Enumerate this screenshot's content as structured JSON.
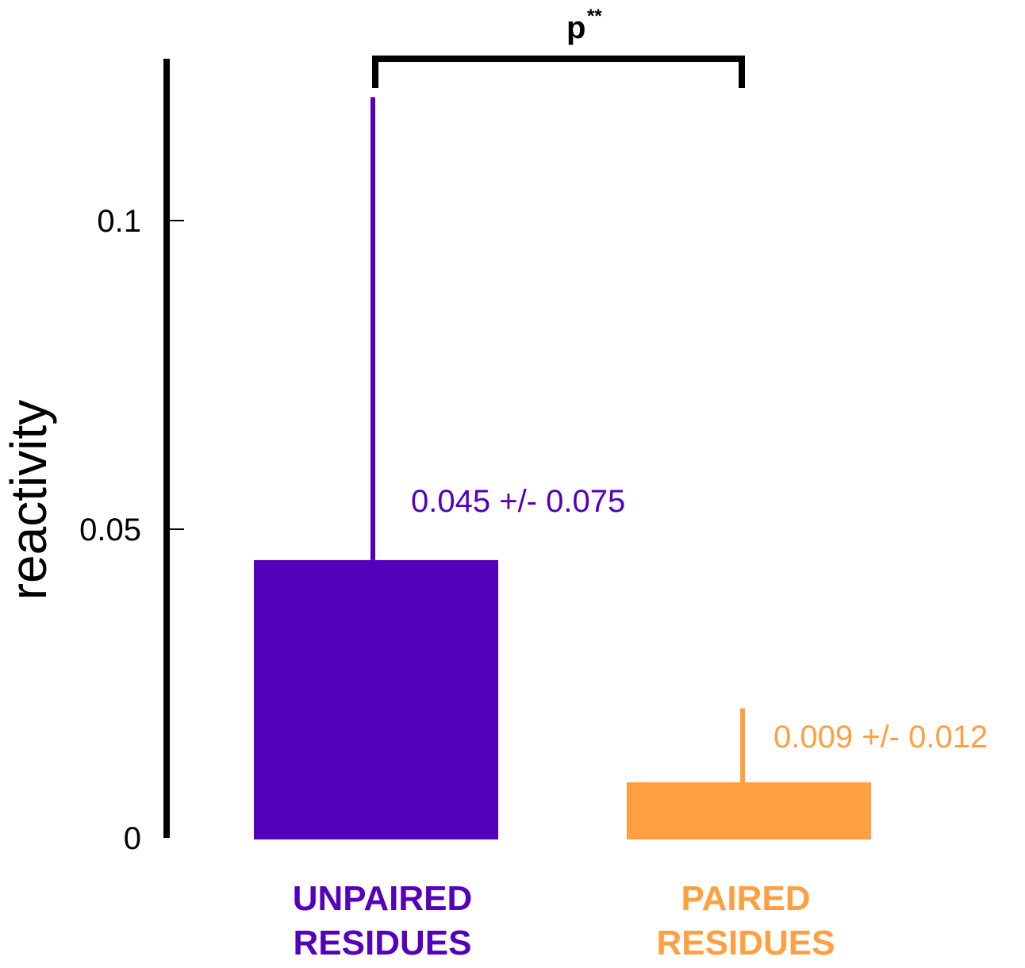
{
  "chart_data": {
    "type": "bar",
    "title": "",
    "xlabel": "",
    "ylabel": "reactivity",
    "ylim": [
      0,
      0.126
    ],
    "yticks": [
      0,
      0.05,
      0.1
    ],
    "ytick_labels": [
      "0",
      "0.05",
      "0.1"
    ],
    "grid": false,
    "categories": [
      [
        "UNPAIRED",
        "RESIDUES"
      ],
      [
        "PAIRED",
        "RESIDUES"
      ]
    ],
    "values": [
      0.045,
      0.009
    ],
    "errors": [
      0.075,
      0.012
    ],
    "data_labels": [
      "0.045 +/- 0.075",
      "0.009 +/- 0.012"
    ],
    "colors": [
      "#5500bb",
      "#ffa040"
    ],
    "significance": {
      "between": [
        0,
        1
      ],
      "label": "p",
      "superscript": "**"
    }
  }
}
